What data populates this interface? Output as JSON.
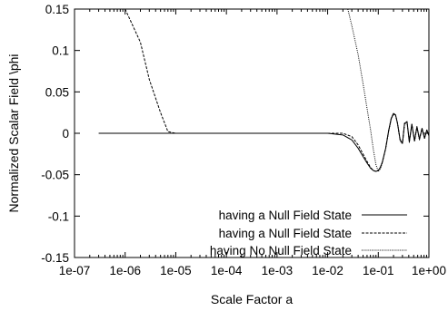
{
  "chart_data": {
    "type": "line",
    "title": "",
    "xlabel": "Scale Factor  a",
    "ylabel": "Normalized Scalar Field  \\phi",
    "xscale": "log",
    "xlim": [
      1e-07,
      1
    ],
    "ylim": [
      -0.15,
      0.15
    ],
    "xticks": [
      1e-07,
      1e-06,
      1e-05,
      0.0001,
      0.001,
      0.01,
      0.1,
      1
    ],
    "xtick_labels": [
      "1e-07",
      "1e-06",
      "1e-05",
      "1e-04",
      "1e-03",
      "1e-02",
      "1e-01",
      "1e+00"
    ],
    "yticks": [
      -0.15,
      -0.1,
      -0.05,
      0,
      0.05,
      0.1,
      0.15
    ],
    "ytick_labels": [
      "-0.15",
      "-0.1",
      "-0.05",
      "0",
      "0.05",
      "0.1",
      "0.15"
    ],
    "grid": false,
    "legend_position": "bottom-right",
    "series": [
      {
        "name": "having a Null Field State",
        "style": "solid",
        "x": [
          3e-07,
          1e-05,
          0.001,
          0.005,
          0.01,
          0.02,
          0.03,
          0.04,
          0.05,
          0.06,
          0.07,
          0.08,
          0.09,
          0.1,
          0.11,
          0.12,
          0.14,
          0.16,
          0.18,
          0.2,
          0.22,
          0.24,
          0.27,
          0.3,
          0.33,
          0.37,
          0.41,
          0.46,
          0.52,
          0.58,
          0.65,
          0.73,
          0.82,
          0.91,
          1.0
        ],
        "y": [
          0,
          0,
          0,
          0,
          0,
          -0.002,
          -0.008,
          -0.018,
          -0.028,
          -0.036,
          -0.042,
          -0.045,
          -0.046,
          -0.045,
          -0.041,
          -0.035,
          -0.018,
          0.003,
          0.018,
          0.024,
          0.022,
          0.012,
          -0.008,
          -0.012,
          0.012,
          0.014,
          -0.01,
          0.011,
          -0.009,
          0.008,
          -0.007,
          0.006,
          -0.006,
          0.004,
          -0.003
        ]
      },
      {
        "name": "having a Null Field State",
        "style": "dashed",
        "x": [
          1e-06,
          2e-06,
          3e-06,
          5e-06,
          7e-06,
          1e-05,
          0.001,
          0.01,
          0.02,
          0.03,
          0.04,
          0.05,
          0.06,
          0.07,
          0.08,
          0.09,
          0.1,
          0.11,
          0.12,
          0.14,
          0.16,
          0.18,
          0.2,
          0.22,
          0.24,
          0.27,
          0.3,
          0.33,
          0.37,
          0.41,
          0.46,
          0.52,
          0.58,
          0.65,
          0.73,
          0.82,
          0.91,
          1.0
        ],
        "y": [
          0.15,
          0.11,
          0.065,
          0.025,
          0.002,
          0,
          0,
          0,
          0,
          -0.004,
          -0.014,
          -0.025,
          -0.034,
          -0.041,
          -0.045,
          -0.046,
          -0.045,
          -0.041,
          -0.035,
          -0.018,
          0.003,
          0.018,
          0.024,
          0.022,
          0.012,
          -0.008,
          -0.012,
          0.012,
          0.014,
          -0.01,
          0.011,
          -0.009,
          0.008,
          -0.007,
          0.006,
          -0.006,
          0.004,
          -0.003
        ]
      },
      {
        "name": "having No Null Field State",
        "style": "dotted",
        "x": [
          0.025,
          0.03,
          0.04,
          0.05,
          0.06,
          0.07,
          0.08,
          0.09,
          0.1,
          0.11,
          0.12,
          0.14,
          0.16,
          0.18,
          0.2,
          0.22,
          0.24,
          0.27,
          0.3,
          0.33,
          0.37,
          0.41,
          0.46,
          0.52,
          0.58,
          0.65,
          0.73,
          0.82,
          0.91,
          1.0
        ],
        "y": [
          0.15,
          0.13,
          0.095,
          0.06,
          0.03,
          0.005,
          -0.02,
          -0.038,
          -0.046,
          -0.043,
          -0.036,
          -0.019,
          0.002,
          0.017,
          0.023,
          0.021,
          0.011,
          -0.009,
          -0.013,
          0.011,
          0.013,
          -0.011,
          0.01,
          -0.01,
          0.007,
          -0.008,
          0.005,
          -0.006,
          0.004,
          -0.003
        ]
      }
    ]
  }
}
